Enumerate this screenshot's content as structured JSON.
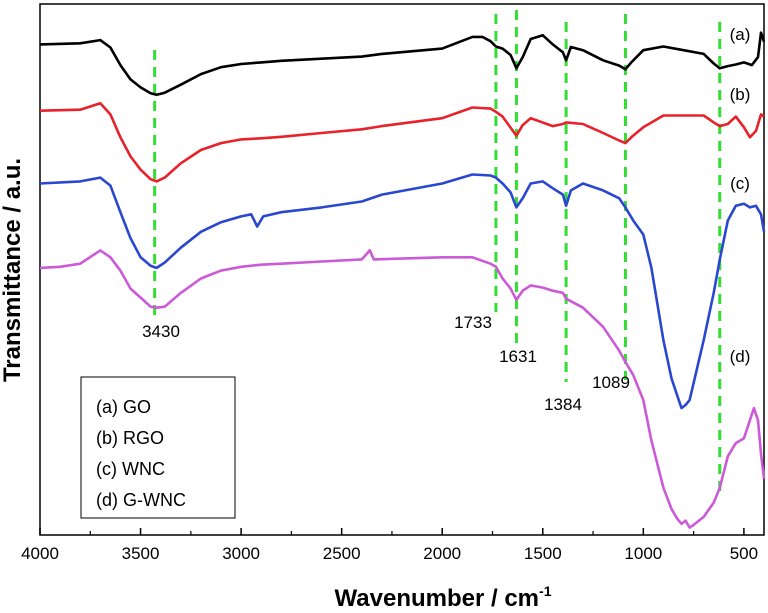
{
  "chart_data": {
    "type": "line",
    "xlabel": "Wavenumber / cm",
    "xlabel_superscript": "-1",
    "ylabel": "Transmittance / a.u.",
    "xlim": [
      4000,
      400
    ],
    "x_reversed": true,
    "x_ticks": [
      4000,
      3500,
      3000,
      2500,
      2000,
      1500,
      1000,
      500
    ],
    "y_ticks": [],
    "ylim": [
      0,
      100
    ],
    "grid": false,
    "legend_placement": "bottom-left",
    "legend": [
      "(a) GO",
      "(b) RGO",
      "(c) WNC",
      "(d) G-WNC"
    ],
    "colors": {
      "a": "#000000",
      "b": "#e8212a",
      "c": "#2948cf",
      "d": "#cc5ad8",
      "reference_line": "#33dd33"
    },
    "reference_lines": [
      {
        "x": 3430,
        "label": "3430"
      },
      {
        "x": 1733,
        "label": "1733"
      },
      {
        "x": 1631,
        "label": "1631"
      },
      {
        "x": 1384,
        "label": "1384"
      },
      {
        "x": 1089,
        "label": "1089"
      },
      {
        "x": 620,
        "label": ""
      }
    ],
    "series": [
      {
        "name": "(a)",
        "color": "#000000",
        "points": [
          [
            4000,
            92.4
          ],
          [
            3800,
            92.6
          ],
          [
            3700,
            93.2
          ],
          [
            3650,
            91.8
          ],
          [
            3600,
            88.5
          ],
          [
            3550,
            85.8
          ],
          [
            3500,
            84.3
          ],
          [
            3450,
            83.2
          ],
          [
            3420,
            82.9
          ],
          [
            3380,
            83.3
          ],
          [
            3300,
            84.8
          ],
          [
            3200,
            86.8
          ],
          [
            3100,
            88.1
          ],
          [
            3000,
            88.7
          ],
          [
            2900,
            89.0
          ],
          [
            2800,
            89.3
          ],
          [
            2600,
            89.7
          ],
          [
            2400,
            90.1
          ],
          [
            2300,
            90.6
          ],
          [
            2000,
            91.6
          ],
          [
            1850,
            93.8
          ],
          [
            1800,
            93.8
          ],
          [
            1760,
            93.0
          ],
          [
            1733,
            92.0
          ],
          [
            1700,
            91.6
          ],
          [
            1660,
            90.4
          ],
          [
            1631,
            87.9
          ],
          [
            1600,
            90.0
          ],
          [
            1560,
            93.4
          ],
          [
            1500,
            94.1
          ],
          [
            1450,
            92.4
          ],
          [
            1400,
            90.9
          ],
          [
            1384,
            89.4
          ],
          [
            1360,
            91.9
          ],
          [
            1300,
            91.3
          ],
          [
            1200,
            89.4
          ],
          [
            1120,
            88.4
          ],
          [
            1089,
            87.7
          ],
          [
            1060,
            89.0
          ],
          [
            1000,
            91.3
          ],
          [
            900,
            92.0
          ],
          [
            800,
            91.3
          ],
          [
            700,
            90.6
          ],
          [
            650,
            88.8
          ],
          [
            620,
            87.9
          ],
          [
            580,
            88.3
          ],
          [
            540,
            88.6
          ],
          [
            500,
            89.0
          ],
          [
            460,
            88.5
          ],
          [
            430,
            90.0
          ],
          [
            415,
            94.6
          ],
          [
            400,
            92.9
          ]
        ]
      },
      {
        "name": "(b)",
        "color": "#e8212a",
        "points": [
          [
            4000,
            79.9
          ],
          [
            3800,
            80.1
          ],
          [
            3700,
            81.3
          ],
          [
            3650,
            79.2
          ],
          [
            3600,
            74.9
          ],
          [
            3550,
            71.3
          ],
          [
            3500,
            68.8
          ],
          [
            3450,
            67.0
          ],
          [
            3420,
            66.6
          ],
          [
            3380,
            67.3
          ],
          [
            3300,
            70.0
          ],
          [
            3200,
            72.5
          ],
          [
            3100,
            73.8
          ],
          [
            3000,
            74.5
          ],
          [
            2900,
            74.7
          ],
          [
            2800,
            75.0
          ],
          [
            2600,
            75.7
          ],
          [
            2400,
            76.4
          ],
          [
            2300,
            77.0
          ],
          [
            2000,
            78.5
          ],
          [
            1850,
            80.5
          ],
          [
            1760,
            80.3
          ],
          [
            1733,
            79.7
          ],
          [
            1700,
            78.8
          ],
          [
            1631,
            75.2
          ],
          [
            1600,
            77.2
          ],
          [
            1560,
            78.5
          ],
          [
            1450,
            77.0
          ],
          [
            1400,
            77.4
          ],
          [
            1384,
            77.7
          ],
          [
            1300,
            77.4
          ],
          [
            1200,
            75.7
          ],
          [
            1120,
            74.3
          ],
          [
            1089,
            73.8
          ],
          [
            1060,
            74.9
          ],
          [
            1000,
            76.8
          ],
          [
            900,
            79.0
          ],
          [
            800,
            79.0
          ],
          [
            700,
            79.0
          ],
          [
            650,
            77.7
          ],
          [
            620,
            77.0
          ],
          [
            580,
            77.4
          ],
          [
            540,
            78.8
          ],
          [
            500,
            76.8
          ],
          [
            470,
            74.9
          ],
          [
            440,
            76.1
          ],
          [
            415,
            79.2
          ],
          [
            400,
            78.8
          ]
        ]
      },
      {
        "name": "(c)",
        "color": "#2948cf",
        "points": [
          [
            4000,
            66.2
          ],
          [
            3800,
            66.6
          ],
          [
            3700,
            67.3
          ],
          [
            3650,
            65.8
          ],
          [
            3600,
            60.8
          ],
          [
            3550,
            55.9
          ],
          [
            3500,
            52.3
          ],
          [
            3450,
            50.7
          ],
          [
            3420,
            50.3
          ],
          [
            3380,
            51.3
          ],
          [
            3300,
            54.1
          ],
          [
            3200,
            57.1
          ],
          [
            3100,
            58.9
          ],
          [
            3000,
            60.0
          ],
          [
            2950,
            60.4
          ],
          [
            2920,
            58.1
          ],
          [
            2890,
            60.0
          ],
          [
            2800,
            60.8
          ],
          [
            2600,
            61.7
          ],
          [
            2400,
            62.8
          ],
          [
            2300,
            64.1
          ],
          [
            2000,
            66.2
          ],
          [
            1850,
            67.9
          ],
          [
            1760,
            67.7
          ],
          [
            1733,
            67.3
          ],
          [
            1700,
            66.2
          ],
          [
            1660,
            64.5
          ],
          [
            1631,
            61.7
          ],
          [
            1600,
            63.4
          ],
          [
            1560,
            66.2
          ],
          [
            1500,
            66.6
          ],
          [
            1450,
            65.3
          ],
          [
            1400,
            64.1
          ],
          [
            1384,
            62.0
          ],
          [
            1360,
            64.9
          ],
          [
            1300,
            66.2
          ],
          [
            1200,
            64.9
          ],
          [
            1120,
            63.4
          ],
          [
            1089,
            61.7
          ],
          [
            1050,
            59.2
          ],
          [
            1000,
            56.6
          ],
          [
            960,
            50.3
          ],
          [
            900,
            36.7
          ],
          [
            860,
            29.5
          ],
          [
            830,
            26.1
          ],
          [
            810,
            23.9
          ],
          [
            790,
            24.5
          ],
          [
            770,
            25.4
          ],
          [
            750,
            28.6
          ],
          [
            700,
            36.7
          ],
          [
            650,
            45.6
          ],
          [
            620,
            51.9
          ],
          [
            580,
            59.2
          ],
          [
            540,
            62.0
          ],
          [
            500,
            62.4
          ],
          [
            470,
            61.7
          ],
          [
            440,
            62.0
          ],
          [
            415,
            60.4
          ],
          [
            400,
            57.1
          ]
        ]
      },
      {
        "name": "(d)",
        "color": "#cc5ad8",
        "points": [
          [
            4000,
            50.3
          ],
          [
            3900,
            50.5
          ],
          [
            3800,
            51.1
          ],
          [
            3700,
            53.6
          ],
          [
            3650,
            52.3
          ],
          [
            3600,
            49.8
          ],
          [
            3550,
            46.4
          ],
          [
            3500,
            44.7
          ],
          [
            3450,
            43.0
          ],
          [
            3420,
            42.8
          ],
          [
            3380,
            43.0
          ],
          [
            3300,
            45.6
          ],
          [
            3200,
            48.3
          ],
          [
            3100,
            49.8
          ],
          [
            3000,
            50.5
          ],
          [
            2900,
            50.9
          ],
          [
            2800,
            51.1
          ],
          [
            2600,
            51.5
          ],
          [
            2400,
            51.9
          ],
          [
            2360,
            53.6
          ],
          [
            2340,
            51.9
          ],
          [
            2000,
            52.3
          ],
          [
            1850,
            52.3
          ],
          [
            1760,
            51.1
          ],
          [
            1733,
            50.5
          ],
          [
            1700,
            48.3
          ],
          [
            1660,
            46.4
          ],
          [
            1631,
            44.3
          ],
          [
            1600,
            46.0
          ],
          [
            1560,
            47.0
          ],
          [
            1500,
            46.6
          ],
          [
            1450,
            46.0
          ],
          [
            1400,
            45.6
          ],
          [
            1384,
            44.5
          ],
          [
            1300,
            42.8
          ],
          [
            1200,
            39.2
          ],
          [
            1120,
            34.7
          ],
          [
            1089,
            32.6
          ],
          [
            1050,
            30.1
          ],
          [
            1000,
            25.4
          ],
          [
            960,
            17.8
          ],
          [
            900,
            8.9
          ],
          [
            860,
            4.9
          ],
          [
            830,
            3.0
          ],
          [
            810,
            2.1
          ],
          [
            790,
            2.7
          ],
          [
            770,
            1.4
          ],
          [
            750,
            1.9
          ],
          [
            700,
            3.4
          ],
          [
            650,
            6.1
          ],
          [
            620,
            8.9
          ],
          [
            580,
            14.8
          ],
          [
            540,
            17.3
          ],
          [
            500,
            18.2
          ],
          [
            470,
            21.6
          ],
          [
            450,
            23.9
          ],
          [
            430,
            21.6
          ],
          [
            415,
            15.3
          ],
          [
            400,
            10.6
          ]
        ]
      }
    ],
    "curve_labels": [
      {
        "text": "(a)",
        "series": "(a)"
      },
      {
        "text": "(b)",
        "series": "(b)"
      },
      {
        "text": "(c)",
        "series": "(c)"
      },
      {
        "text": "(d)",
        "series": "(d)"
      }
    ]
  }
}
